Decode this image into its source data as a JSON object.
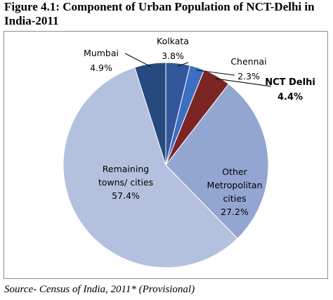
{
  "figure": {
    "title": "Figure 4.1: Component of Urban Population of NCT-Delhi in India-2011",
    "source": "Source- Census of India, 2011* (Provisional)"
  },
  "chart_data": {
    "type": "pie",
    "start_angle_deg": 0,
    "direction": "clockwise",
    "legend": "none",
    "slices": [
      {
        "key": "kolkata",
        "name": "Kolkata",
        "value": 3.8,
        "label": "3.8%",
        "color": "#33579a"
      },
      {
        "key": "chennai",
        "name": "Chennai",
        "value": 2.3,
        "label": "2.3%",
        "color": "#3c6fc2"
      },
      {
        "key": "nct_delhi",
        "name": "NCT Delhi",
        "value": 4.4,
        "label": "4.4%",
        "color": "#7c2525"
      },
      {
        "key": "other_metro",
        "name": "Other Metropolitan cities",
        "name_lines": [
          "Other",
          "Metropolitan",
          "cities"
        ],
        "value": 27.2,
        "label": "27.2%",
        "color": "#93a6d1"
      },
      {
        "key": "remaining",
        "name": "Remaining towns/ cities",
        "name_lines": [
          "Remaining",
          "towns/ cities"
        ],
        "value": 57.4,
        "label": "57.4%",
        "color": "#b4c1de"
      },
      {
        "key": "mumbai",
        "name": "Mumbai",
        "value": 4.9,
        "label": "4.9%",
        "color": "#264a7e"
      }
    ]
  }
}
